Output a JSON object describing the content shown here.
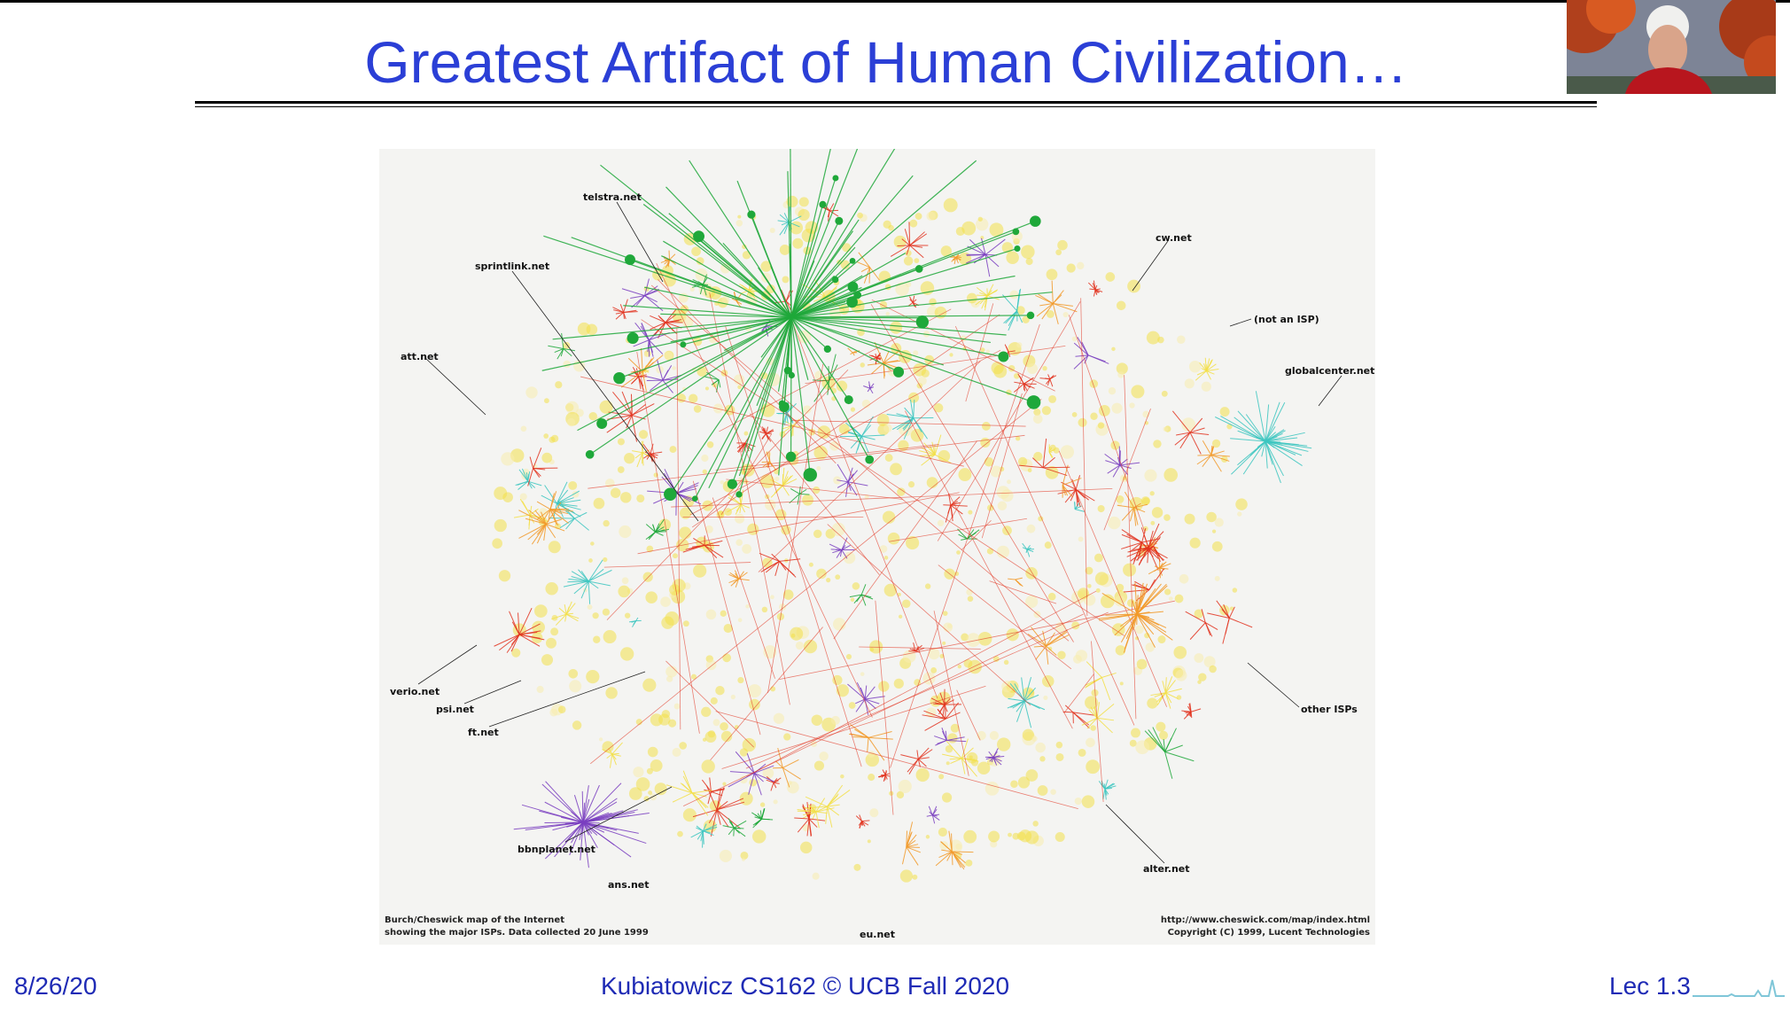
{
  "slide": {
    "title": "Greatest Artifact of Human Civilization…"
  },
  "map": {
    "labels": {
      "telstra": "telstra.net",
      "cw": "cw.net",
      "sprintlink": "sprintlink.net",
      "not_isp": "(not an ISP)",
      "att": "att.net",
      "globalcenter": "globalcenter.net",
      "verio": "verio.net",
      "psi": "psi.net",
      "ft": "ft.net",
      "other_isps": "other ISPs",
      "bbnplanet": "bbnplanet.net",
      "ans": "ans.net",
      "alter": "alter.net",
      "eu": "eu.net"
    },
    "credit_left": {
      "line1": "Burch/Cheswick map of the Internet",
      "line2": "showing the major ISPs.  Data collected 20 June 1999"
    },
    "credit_right": {
      "line1": "http://www.cheswick.com/map/index.html",
      "line2": "Copyright (C) 1999, Lucent Technologies"
    }
  },
  "footer": {
    "date": "8/26/20",
    "course": "Kubiatowicz CS162 © UCB Fall 2020",
    "lecture": "Lec 1.3"
  },
  "colors": {
    "title": "#2b3fd6",
    "footer": "#1f2bb5",
    "hub_green": "#1fa83a",
    "red": "#e2331f",
    "yellow": "#f3e04a",
    "purple": "#7a3fc0",
    "cyan": "#3cc6c0",
    "orange": "#f29a2a"
  }
}
